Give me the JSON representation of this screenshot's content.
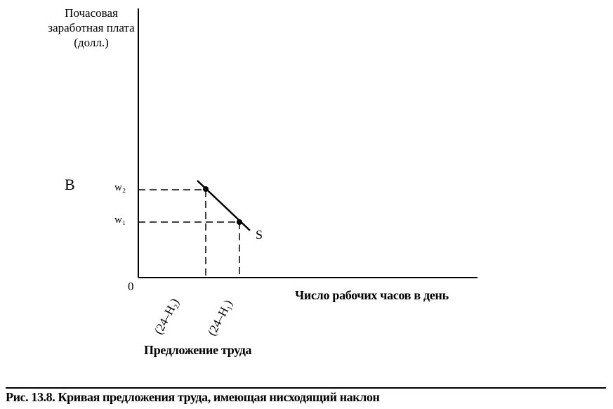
{
  "figure": {
    "y_axis_label": "Почасовая заработная плата (долл.)",
    "panel_letter": "B",
    "origin": "0",
    "w2_label": "w₂",
    "w1_label": "w₁",
    "curve_label": "S",
    "x_axis_label": "Число рабочих часов в день",
    "x_tick_2": "(24–H₂)",
    "x_tick_1": "(24–H₁)",
    "subtitle": "Предложение труда",
    "caption": "Рис. 13.8.    Кривая предложения труда, имеющая нисходящий наклон"
  }
}
